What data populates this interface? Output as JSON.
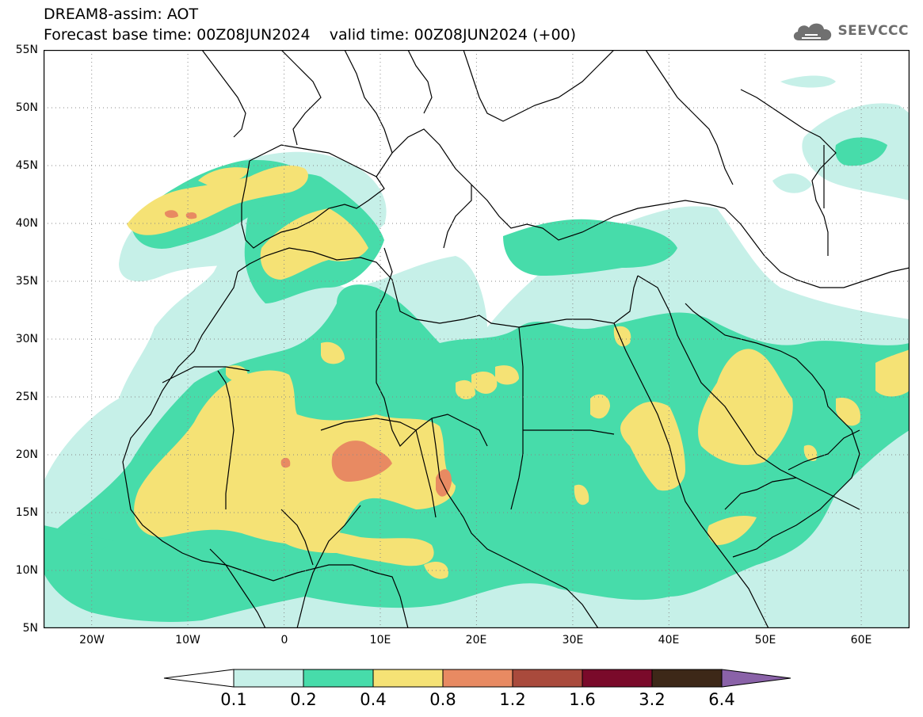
{
  "header": {
    "title_line1": "DREAM8-assim: AOT",
    "title_line2": "Forecast base time: 00Z08JUN2024    valid time: 00Z08JUN2024 (+00)"
  },
  "logo": {
    "icon": "cloud-icon",
    "text": "SEEVCCC"
  },
  "map": {
    "projection": "lat-lon",
    "lon_range": [
      -25,
      65
    ],
    "lat_range": [
      5,
      55
    ],
    "lat_labels": [
      "55N",
      "50N",
      "45N",
      "40N",
      "35N",
      "30N",
      "25N",
      "20N",
      "15N",
      "10N",
      "5N"
    ],
    "lon_labels": [
      "20W",
      "10W",
      "0",
      "10E",
      "20E",
      "30E",
      "40E",
      "50E",
      "60E"
    ],
    "field": "Aerosol Optical Thickness"
  },
  "colorbar": {
    "levels": [
      "0.1",
      "0.2",
      "0.4",
      "0.8",
      "1.2",
      "1.6",
      "3.2",
      "6.4"
    ],
    "colors": [
      "#ffffff",
      "#c6f0e8",
      "#47dcaa",
      "#f5e275",
      "#e88a62",
      "#a94a3c",
      "#7a0a2a",
      "#3d2818",
      "#8a62a8"
    ]
  },
  "colors": {
    "c1": "#c6f0e8",
    "c2": "#47dcaa",
    "c3": "#f5e275",
    "c4": "#e88a62"
  }
}
